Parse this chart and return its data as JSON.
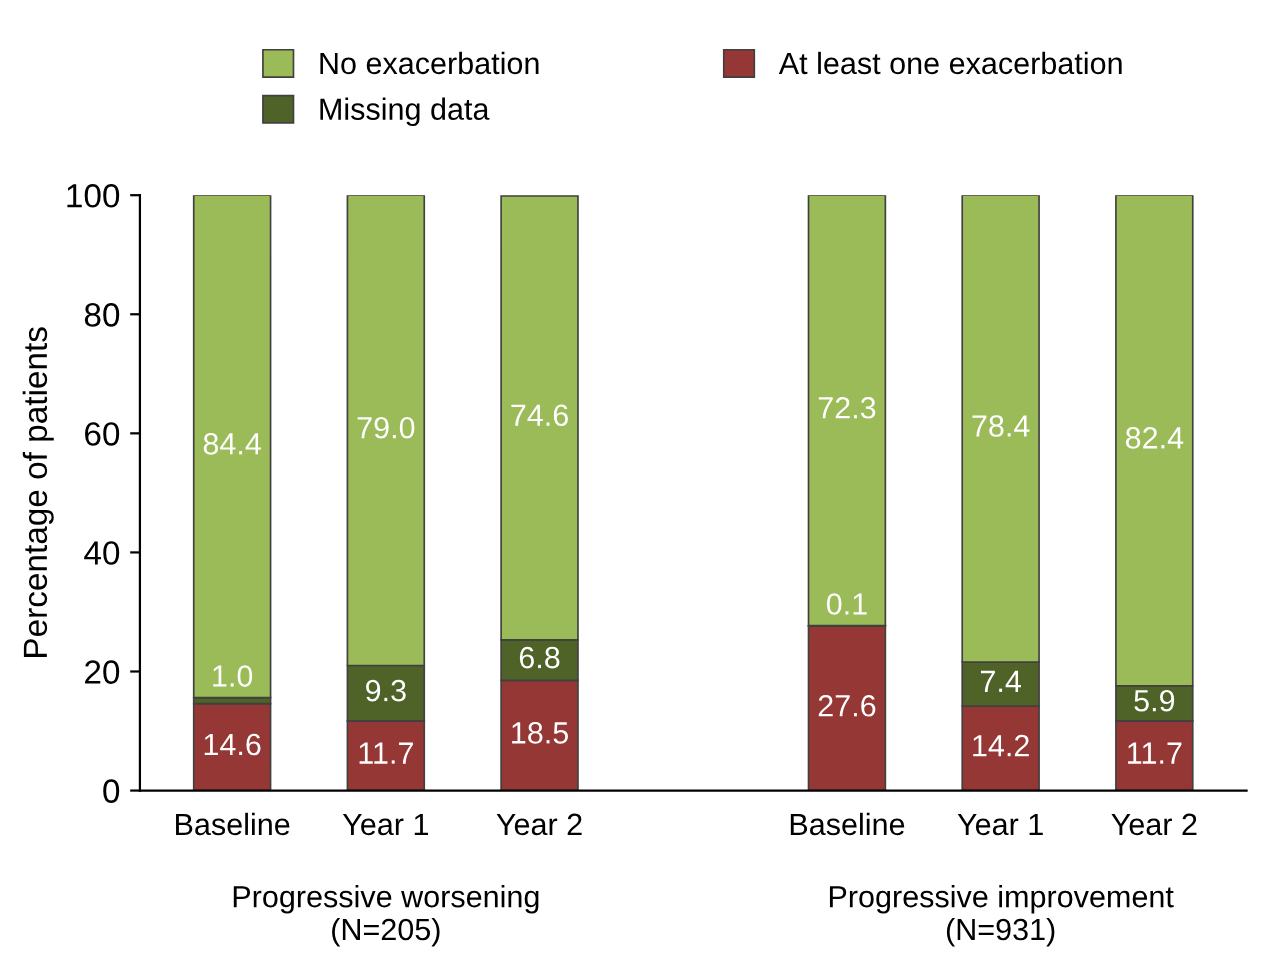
{
  "chart_data": {
    "type": "bar",
    "stacked": true,
    "ylabel": "Percentage of patients",
    "categories": [
      "Baseline",
      "Year 1",
      "Year 2",
      null,
      "Baseline",
      "Year 1",
      "Year 2"
    ],
    "series": [
      {
        "name": "At least one exacerbation",
        "color": "#953735",
        "values": [
          14.6,
          11.7,
          18.5,
          null,
          27.6,
          14.2,
          11.7
        ],
        "value_labels": [
          "14.6",
          "11.7",
          "18.5",
          null,
          "27.6",
          "14.2",
          "11.7"
        ]
      },
      {
        "name": "Missing data",
        "color": "#4f6228",
        "values": [
          1.0,
          9.3,
          6.8,
          null,
          0.1,
          7.4,
          5.9
        ],
        "value_labels": [
          "1.0",
          "9.3",
          "6.8",
          null,
          "0.1",
          "7.4",
          "5.9"
        ]
      },
      {
        "name": "No exacerbation",
        "color": "#9bbb59",
        "values": [
          84.4,
          79.0,
          74.6,
          null,
          72.3,
          78.4,
          82.4
        ],
        "value_labels": [
          "84.4",
          "79.0",
          "74.6",
          null,
          "72.3",
          "78.4",
          "82.4"
        ]
      }
    ],
    "ylim": [
      0,
      100
    ],
    "yticks": [
      0,
      20,
      40,
      60,
      80,
      100
    ],
    "grid": false,
    "legend": "top",
    "annotations": [
      "Progressive worsening\n(N=205)",
      "Progressive improvement\n(N=931)"
    ]
  }
}
